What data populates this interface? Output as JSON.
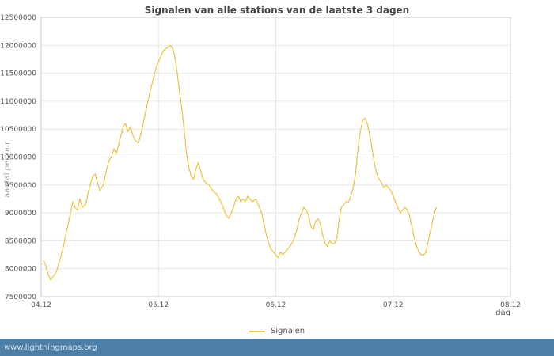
{
  "colors": {
    "line": "#edc240",
    "grid": "#e7e7e7",
    "frame": "#c9c9c9",
    "tick_text": "#545454",
    "title_text": "#454545",
    "axis_label_text": "#9a9a9a",
    "footer_bg": "#4d7ea5",
    "footer_text": "#d9e4ec"
  },
  "footer": {
    "text": "www.lightningmaps.org"
  },
  "chart_data": {
    "type": "line",
    "title": "Signalen van alle stations van de laatste 3 dagen",
    "xlabel": "dag",
    "ylabel": "aantal per uur",
    "xlim": [
      4,
      8
    ],
    "ylim": [
      7500000,
      12500000
    ],
    "grid": true,
    "legend_position": "bottom-center",
    "x_ticks": [
      {
        "v": 4,
        "label": "04.12"
      },
      {
        "v": 5,
        "label": "05.12"
      },
      {
        "v": 6,
        "label": "06.12"
      },
      {
        "v": 7,
        "label": "07.12"
      },
      {
        "v": 8,
        "label": "08.12"
      }
    ],
    "y_ticks": [
      {
        "v": 7500000,
        "label": "7500000"
      },
      {
        "v": 8000000,
        "label": "8000000"
      },
      {
        "v": 8500000,
        "label": "8500000"
      },
      {
        "v": 9000000,
        "label": "9000000"
      },
      {
        "v": 9500000,
        "label": "9500000"
      },
      {
        "v": 10000000,
        "label": "10000000"
      },
      {
        "v": 10500000,
        "label": "10500000"
      },
      {
        "v": 11000000,
        "label": "11000000"
      },
      {
        "v": 11500000,
        "label": "11500000"
      },
      {
        "v": 12000000,
        "label": "12000000"
      },
      {
        "v": 12500000,
        "label": "12500000"
      }
    ],
    "series": [
      {
        "name": "Signalen",
        "color": "#edc240",
        "points": [
          [
            4.02,
            8150000
          ],
          [
            4.04,
            8050000
          ],
          [
            4.06,
            7900000
          ],
          [
            4.08,
            7800000
          ],
          [
            4.1,
            7850000
          ],
          [
            4.13,
            7950000
          ],
          [
            4.16,
            8150000
          ],
          [
            4.19,
            8400000
          ],
          [
            4.22,
            8700000
          ],
          [
            4.25,
            9000000
          ],
          [
            4.27,
            9200000
          ],
          [
            4.29,
            9100000
          ],
          [
            4.31,
            9050000
          ],
          [
            4.33,
            9250000
          ],
          [
            4.35,
            9100000
          ],
          [
            4.38,
            9150000
          ],
          [
            4.41,
            9450000
          ],
          [
            4.44,
            9650000
          ],
          [
            4.46,
            9700000
          ],
          [
            4.48,
            9550000
          ],
          [
            4.5,
            9400000
          ],
          [
            4.53,
            9500000
          ],
          [
            4.56,
            9800000
          ],
          [
            4.58,
            9950000
          ],
          [
            4.6,
            10000000
          ],
          [
            4.62,
            10150000
          ],
          [
            4.64,
            10050000
          ],
          [
            4.67,
            10300000
          ],
          [
            4.7,
            10550000
          ],
          [
            4.72,
            10600000
          ],
          [
            4.74,
            10450000
          ],
          [
            4.76,
            10550000
          ],
          [
            4.78,
            10400000
          ],
          [
            4.8,
            10300000
          ],
          [
            4.83,
            10250000
          ],
          [
            4.86,
            10500000
          ],
          [
            4.89,
            10800000
          ],
          [
            4.92,
            11100000
          ],
          [
            4.95,
            11350000
          ],
          [
            4.98,
            11600000
          ],
          [
            5.01,
            11750000
          ],
          [
            5.04,
            11900000
          ],
          [
            5.07,
            11950000
          ],
          [
            5.1,
            12000000
          ],
          [
            5.12,
            11950000
          ],
          [
            5.14,
            11800000
          ],
          [
            5.16,
            11500000
          ],
          [
            5.18,
            11150000
          ],
          [
            5.2,
            10850000
          ],
          [
            5.22,
            10450000
          ],
          [
            5.24,
            10050000
          ],
          [
            5.26,
            9800000
          ],
          [
            5.28,
            9650000
          ],
          [
            5.3,
            9600000
          ],
          [
            5.32,
            9800000
          ],
          [
            5.34,
            9900000
          ],
          [
            5.36,
            9750000
          ],
          [
            5.38,
            9600000
          ],
          [
            5.4,
            9550000
          ],
          [
            5.43,
            9500000
          ],
          [
            5.46,
            9400000
          ],
          [
            5.49,
            9350000
          ],
          [
            5.52,
            9250000
          ],
          [
            5.55,
            9100000
          ],
          [
            5.58,
            8950000
          ],
          [
            5.6,
            8900000
          ],
          [
            5.62,
            9000000
          ],
          [
            5.64,
            9100000
          ],
          [
            5.66,
            9250000
          ],
          [
            5.68,
            9300000
          ],
          [
            5.7,
            9200000
          ],
          [
            5.72,
            9250000
          ],
          [
            5.74,
            9200000
          ],
          [
            5.76,
            9300000
          ],
          [
            5.78,
            9250000
          ],
          [
            5.8,
            9200000
          ],
          [
            5.83,
            9250000
          ],
          [
            5.86,
            9100000
          ],
          [
            5.88,
            9000000
          ],
          [
            5.9,
            8800000
          ],
          [
            5.92,
            8600000
          ],
          [
            5.94,
            8450000
          ],
          [
            5.96,
            8350000
          ],
          [
            5.98,
            8300000
          ],
          [
            6.0,
            8250000
          ],
          [
            6.02,
            8200000
          ],
          [
            6.04,
            8300000
          ],
          [
            6.06,
            8250000
          ],
          [
            6.08,
            8300000
          ],
          [
            6.1,
            8350000
          ],
          [
            6.12,
            8400000
          ],
          [
            6.15,
            8500000
          ],
          [
            6.18,
            8700000
          ],
          [
            6.2,
            8900000
          ],
          [
            6.22,
            9000000
          ],
          [
            6.24,
            9100000
          ],
          [
            6.26,
            9050000
          ],
          [
            6.28,
            8950000
          ],
          [
            6.3,
            8750000
          ],
          [
            6.32,
            8700000
          ],
          [
            6.34,
            8850000
          ],
          [
            6.36,
            8900000
          ],
          [
            6.38,
            8800000
          ],
          [
            6.4,
            8600000
          ],
          [
            6.42,
            8450000
          ],
          [
            6.44,
            8400000
          ],
          [
            6.46,
            8500000
          ],
          [
            6.48,
            8450000
          ],
          [
            6.5,
            8450000
          ],
          [
            6.52,
            8550000
          ],
          [
            6.54,
            8900000
          ],
          [
            6.56,
            9100000
          ],
          [
            6.58,
            9150000
          ],
          [
            6.6,
            9200000
          ],
          [
            6.62,
            9200000
          ],
          [
            6.64,
            9300000
          ],
          [
            6.66,
            9450000
          ],
          [
            6.68,
            9700000
          ],
          [
            6.7,
            10150000
          ],
          [
            6.72,
            10450000
          ],
          [
            6.74,
            10650000
          ],
          [
            6.76,
            10700000
          ],
          [
            6.78,
            10600000
          ],
          [
            6.8,
            10400000
          ],
          [
            6.82,
            10150000
          ],
          [
            6.84,
            9900000
          ],
          [
            6.86,
            9700000
          ],
          [
            6.88,
            9600000
          ],
          [
            6.9,
            9550000
          ],
          [
            6.92,
            9450000
          ],
          [
            6.94,
            9500000
          ],
          [
            6.96,
            9450000
          ],
          [
            6.98,
            9400000
          ],
          [
            7.0,
            9300000
          ],
          [
            7.02,
            9200000
          ],
          [
            7.04,
            9100000
          ],
          [
            7.06,
            9000000
          ],
          [
            7.08,
            9050000
          ],
          [
            7.1,
            9100000
          ],
          [
            7.12,
            9050000
          ],
          [
            7.14,
            8950000
          ],
          [
            7.16,
            8750000
          ],
          [
            7.18,
            8550000
          ],
          [
            7.2,
            8400000
          ],
          [
            7.22,
            8300000
          ],
          [
            7.24,
            8250000
          ],
          [
            7.26,
            8250000
          ],
          [
            7.28,
            8300000
          ],
          [
            7.3,
            8500000
          ],
          [
            7.32,
            8700000
          ],
          [
            7.34,
            8900000
          ],
          [
            7.36,
            9050000
          ],
          [
            7.37,
            9100000
          ]
        ]
      }
    ]
  }
}
